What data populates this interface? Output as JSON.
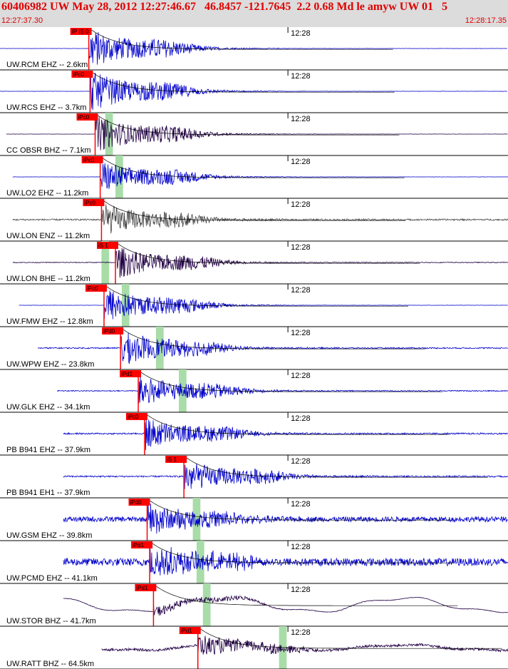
{
  "header": {
    "title": "60406982 UW May 28, 2012 12:27:46.67   46.8457 -121.7645  2.2 0.68 Md le amyw UW 01   5",
    "start_time": "12:27:37.30",
    "end_time": "12:28:17.35"
  },
  "colors": {
    "header_bg": "#dcdcdc",
    "header_text": "#e00000",
    "pick": "#ff0000",
    "phase_window": "#a8dca8"
  },
  "chart_data": {
    "type": "seismogram",
    "time_axis": {
      "start": "12:27:37.30",
      "end": "12:28:17.35",
      "minute_tick_label": "12:28"
    },
    "traces": [
      {
        "label": "UW.RCM EHZ -- 2.6km",
        "color": "#0000cc",
        "pick_label": "IP IS 0",
        "pick_time_s": 7.0,
        "s_window_s": [],
        "amp": 0.55,
        "noise": 0.01,
        "wave": 0,
        "start_s": 0.0,
        "end_s": 40.0
      },
      {
        "label": "UW.RCS EHZ -- 3.7km",
        "color": "#0000cc",
        "pick_label": "iPc0",
        "pick_time_s": 7.1,
        "s_window_s": [],
        "amp": 0.55,
        "noise": 0.01,
        "wave": 0,
        "start_s": 0.0,
        "end_s": 40.0
      },
      {
        "label": "CC OBSR BHZ -- 7.1km",
        "color": "#220044",
        "pick_label": "iPc0",
        "pick_time_s": 7.5,
        "s_window_s": [
          8.3,
          8.9
        ],
        "amp": 0.5,
        "noise": 0.01,
        "wave": 0,
        "start_s": 0.5,
        "end_s": 40.5
      },
      {
        "label": "UW.LO2 EHZ -- 11.2km",
        "color": "#0000cc",
        "pick_label": "iPc0",
        "pick_time_s": 7.9,
        "s_window_s": [
          9.1,
          9.7
        ],
        "amp": 0.45,
        "noise": 0.01,
        "wave": 0,
        "start_s": 1.0,
        "end_s": 41.0
      },
      {
        "label": "UW.LON ENZ -- 11.2km",
        "color": "#444444",
        "pick_label": "iPc0",
        "pick_time_s": 8.0,
        "s_window_s": [],
        "amp": 0.45,
        "noise": 0.06,
        "wave": 0,
        "start_s": 1.0,
        "end_s": 41.0
      },
      {
        "label": "UW.LON BHE -- 11.2km",
        "color": "#220044",
        "pick_label": "iS 1",
        "pick_time_s": 9.1,
        "s_window_s": [
          8.0,
          8.6
        ],
        "amp": 0.45,
        "noise": 0.03,
        "wave": 0,
        "start_s": 1.0,
        "end_s": 41.0
      },
      {
        "label": "UW.FMW EHZ -- 12.8km",
        "color": "#0000cc",
        "pick_label": "iPc0",
        "pick_time_s": 8.2,
        "s_window_s": [
          9.6,
          10.2
        ],
        "amp": 0.5,
        "noise": 0.01,
        "wave": 0,
        "start_s": 1.5,
        "end_s": 41.5
      },
      {
        "label": "UW.WPW EHZ -- 23.8km",
        "color": "#0000cc",
        "pick_label": "iPd0",
        "pick_time_s": 9.5,
        "s_window_s": [
          12.3,
          12.9
        ],
        "amp": 0.5,
        "noise": 0.05,
        "wave": 0,
        "start_s": 3.0,
        "end_s": 43.0
      },
      {
        "label": "UW.GLK EHZ -- 34.1km",
        "color": "#0000cc",
        "pick_label": "iPd1",
        "pick_time_s": 10.9,
        "s_window_s": [
          14.1,
          14.7
        ],
        "amp": 0.45,
        "noise": 0.04,
        "wave": 0,
        "start_s": 4.5,
        "end_s": 44.5
      },
      {
        "label": "PB B941 EHZ -- 37.9km",
        "color": "#0000cc",
        "pick_label": "iPc0",
        "pick_time_s": 11.4,
        "s_window_s": [],
        "amp": 0.45,
        "noise": 0.06,
        "wave": 0,
        "start_s": 5.0,
        "end_s": 45.0
      },
      {
        "label": "PB B941 EH1 -- 37.9km",
        "color": "#0000cc",
        "pick_label": "iS 1",
        "pick_time_s": 14.5,
        "s_window_s": [],
        "amp": 0.45,
        "noise": 0.06,
        "wave": 0,
        "start_s": 5.0,
        "end_s": 45.0
      },
      {
        "label": "UW.GSM EHZ -- 39.8km",
        "color": "#0000cc",
        "pick_label": "iPd0",
        "pick_time_s": 11.6,
        "s_window_s": [
          15.2,
          15.8
        ],
        "amp": 0.45,
        "noise": 0.2,
        "wave": 0,
        "start_s": 5.0,
        "end_s": 45.0
      },
      {
        "label": "UW.PCMD EHZ -- 41.1km",
        "color": "#0000cc",
        "pick_label": "iPd1",
        "pick_time_s": 11.8,
        "s_window_s": [
          15.5,
          16.1
        ],
        "amp": 0.5,
        "noise": 0.3,
        "wave": 0,
        "start_s": 5.0,
        "end_s": 45.0
      },
      {
        "label": "UW.STOR BHZ -- 41.7km",
        "color": "#220044",
        "pick_label": "iPd1",
        "pick_time_s": 12.1,
        "s_window_s": [
          16.0,
          16.6
        ],
        "amp": 0.15,
        "noise": 0.02,
        "wave": 0.4,
        "start_s": 5.0,
        "end_s": 45.0
      },
      {
        "label": "UW.RATT BHZ -- 64.5km",
        "color": "#220044",
        "pick_label": "iPd1",
        "pick_time_s": 15.6,
        "s_window_s": [
          22.0,
          22.6
        ],
        "amp": 0.3,
        "noise": 0.1,
        "wave": 0.15,
        "start_s": 8.0,
        "end_s": 48.0
      }
    ]
  }
}
